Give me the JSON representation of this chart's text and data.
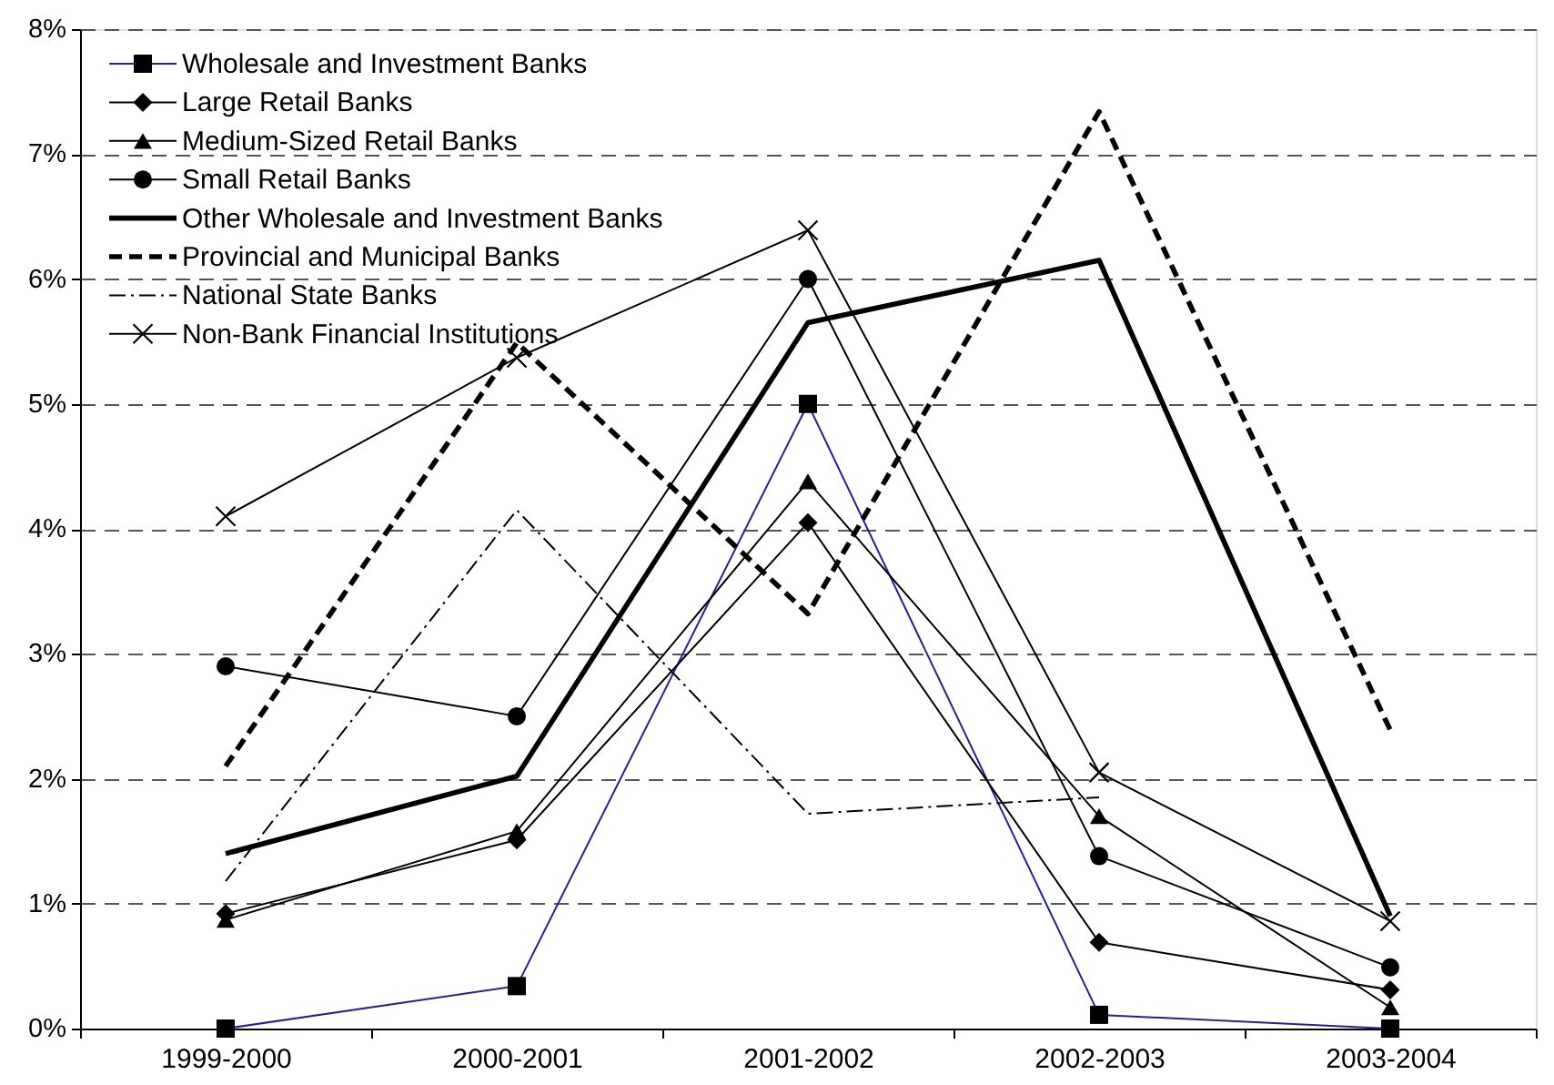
{
  "chart_data": {
    "type": "line",
    "categories": [
      "1999-2000",
      "2000-2001",
      "2001-2002",
      "2002-2003",
      "2003-2004"
    ],
    "ylim": [
      0,
      8
    ],
    "yticks": [
      {
        "value": 0,
        "label": "0%"
      },
      {
        "value": 1,
        "label": "1%"
      },
      {
        "value": 2,
        "label": "2%"
      },
      {
        "value": 3,
        "label": "3%"
      },
      {
        "value": 4,
        "label": "4%"
      },
      {
        "value": 5,
        "label": "5%"
      },
      {
        "value": 6,
        "label": "6%"
      },
      {
        "value": 7,
        "label": "7%"
      },
      {
        "value": 8,
        "label": "8%"
      }
    ],
    "grid": "y",
    "legend": "top left",
    "series": [
      {
        "name": "Wholesale and Investment Banks",
        "color": "#23238e",
        "marker": "square",
        "line_style": "solid",
        "values": [
          0.0,
          0.34,
          5.0,
          0.11,
          0.0
        ]
      },
      {
        "name": "Large Retail Banks",
        "color": "#000000",
        "marker": "diamond",
        "line_style": "solid",
        "values": [
          0.92,
          1.51,
          4.05,
          0.69,
          0.31
        ]
      },
      {
        "name": "Medium-Sized Retail Banks",
        "color": "#000000",
        "marker": "triangle",
        "line_style": "solid",
        "values": [
          0.87,
          1.58,
          4.38,
          1.7,
          0.17
        ]
      },
      {
        "name": "Small Retail Banks",
        "color": "#000000",
        "marker": "circle",
        "line_style": "solid",
        "values": [
          2.9,
          2.5,
          6.0,
          1.38,
          0.49
        ]
      },
      {
        "name": "Other Wholesale and Investment Banks",
        "color": "#000000",
        "marker": "none",
        "line_style": "solid",
        "values": [
          1.4,
          2.02,
          5.65,
          6.15,
          0.9
        ]
      },
      {
        "name": "Provincial and Municipal Banks",
        "color": "#000000",
        "marker": "none",
        "line_style": "dashed",
        "values": [
          2.1,
          5.49,
          3.32,
          7.34,
          2.39
        ]
      },
      {
        "name": "National State Banks",
        "color": "#000000",
        "marker": "none",
        "line_style": "dotted",
        "values": [
          1.18,
          4.15,
          1.72,
          1.85,
          null
        ]
      },
      {
        "name": "Non-Bank Financial Institutions",
        "color": "#000000",
        "marker": "cross",
        "line_style": "solid",
        "values": [
          4.1,
          5.37,
          6.39,
          2.05,
          0.86
        ]
      }
    ]
  }
}
